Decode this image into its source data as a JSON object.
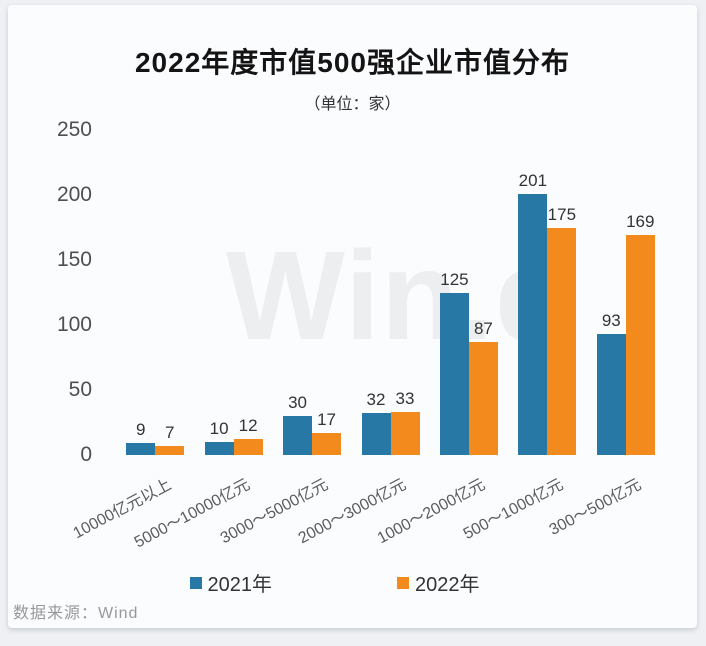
{
  "title": "2022年度市值500强企业市值分布",
  "subtitle": "（单位：家）",
  "watermark": "Win.d",
  "source": "数据来源：Wind",
  "colors": {
    "series_2021": "#2878a5",
    "series_2022": "#f28a1d",
    "watermark_gray": "#eceef0"
  },
  "chart_data": {
    "type": "bar",
    "title": "2022年度市值500强企业市值分布",
    "subtitle": "（单位：家）",
    "categories": [
      "10000亿元以上",
      "5000～10000亿元",
      "3000～5000亿元",
      "2000～3000亿元",
      "1000～2000亿元",
      "500～1000亿元",
      "300～500亿元"
    ],
    "series": [
      {
        "name": "2021年",
        "color": "#2878a5",
        "values": [
          9,
          10,
          30,
          32,
          125,
          201,
          93
        ]
      },
      {
        "name": "2022年",
        "color": "#f28a1d",
        "values": [
          7,
          12,
          17,
          33,
          87,
          175,
          169
        ]
      }
    ],
    "xlabel": "",
    "ylabel": "",
    "ylim": [
      0,
      250
    ],
    "yticks": [
      0,
      50,
      100,
      150,
      200,
      250
    ],
    "grid": false,
    "legend_position": "bottom",
    "value_labels": true
  }
}
